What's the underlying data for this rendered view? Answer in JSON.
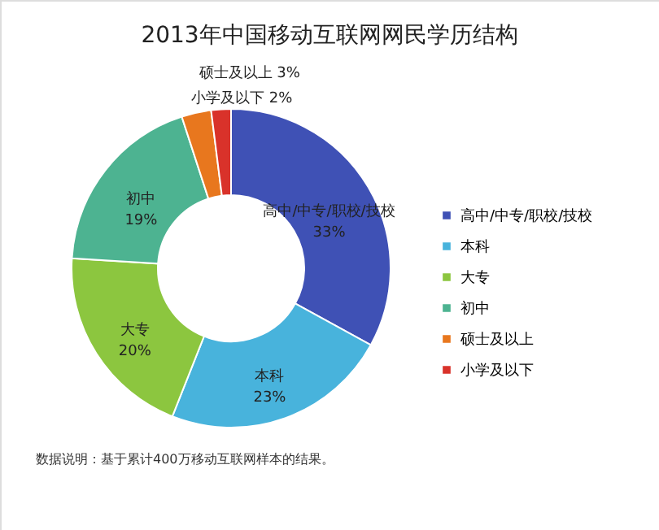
{
  "chart_data": {
    "type": "donut",
    "title": "2013年中国移动互联网网民学历结构",
    "categories": [
      "高中/中专/职校/技校",
      "本科",
      "大专",
      "初中",
      "硕士及以上",
      "小学及以下"
    ],
    "values": [
      33,
      23,
      20,
      19,
      3,
      2
    ],
    "value_labels": [
      "33%",
      "23%",
      "20%",
      "19%",
      "3%",
      "2%"
    ],
    "colors": [
      "#3f51b5",
      "#48b3dc",
      "#8cc63f",
      "#4db391",
      "#e8771e",
      "#d9322a"
    ],
    "legend": "right",
    "annotations": [
      "数据说明：基于累计400万移动互联网样本的结果。"
    ]
  }
}
